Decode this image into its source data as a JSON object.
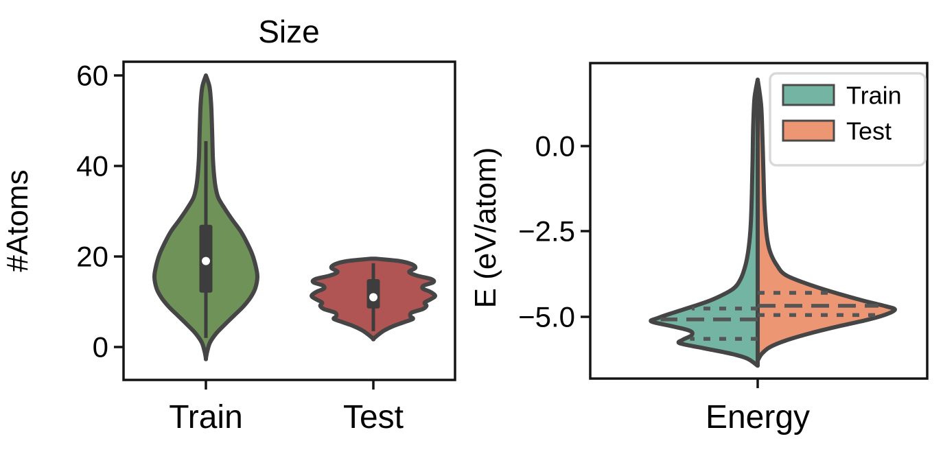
{
  "chart_data": [
    {
      "type": "violin",
      "title": "Size",
      "ylabel": "#Atoms",
      "xlabel": "",
      "categories": [
        "Train",
        "Test"
      ],
      "yticks": [
        60,
        40,
        20,
        0
      ],
      "ytick_labels": [
        "60",
        "40",
        "20",
        "0"
      ],
      "ylim": [
        -8,
        64
      ],
      "grid": false,
      "inner": "box",
      "series": [
        {
          "name": "Train",
          "color": "#6e9257",
          "median": 19,
          "q1": 12,
          "q3": 27,
          "whisker_low": 2,
          "whisker_high": 45.5,
          "kde_range": [
            -2.5,
            60
          ],
          "kde": [
            [
              60,
              0
            ],
            [
              57.5,
              0.07
            ],
            [
              54,
              0.1
            ],
            [
              50,
              0.115
            ],
            [
              46,
              0.125
            ],
            [
              42,
              0.135
            ],
            [
              38.5,
              0.155
            ],
            [
              35.5,
              0.185
            ],
            [
              33,
              0.24
            ],
            [
              30.5,
              0.37
            ],
            [
              28,
              0.52
            ],
            [
              25.5,
              0.68
            ],
            [
              23,
              0.8
            ],
            [
              20.5,
              0.9
            ],
            [
              18,
              0.965
            ],
            [
              15.5,
              1.0
            ],
            [
              13,
              0.96
            ],
            [
              11,
              0.87
            ],
            [
              9,
              0.73
            ],
            [
              7,
              0.55
            ],
            [
              5,
              0.37
            ],
            [
              3,
              0.2
            ],
            [
              1,
              0.08
            ],
            [
              -1,
              0.025
            ],
            [
              -2.5,
              0
            ]
          ]
        },
        {
          "name": "Test",
          "color": "#b05454",
          "median": 11,
          "q1": 8.5,
          "q3": 15,
          "whisker_low": 3.5,
          "whisker_high": 18.5,
          "kde_range": [
            1.8,
            19.5
          ],
          "kde": [
            [
              19.5,
              0.05
            ],
            [
              19,
              0.42
            ],
            [
              18.3,
              0.62
            ],
            [
              17.5,
              0.68
            ],
            [
              16.6,
              0.58
            ],
            [
              15.8,
              0.7
            ],
            [
              15,
              0.94
            ],
            [
              14.3,
              0.97
            ],
            [
              13.6,
              0.82
            ],
            [
              12.9,
              0.8
            ],
            [
              12.2,
              0.92
            ],
            [
              11.3,
              1.0
            ],
            [
              10.5,
              0.92
            ],
            [
              9.8,
              0.83
            ],
            [
              9.1,
              0.86
            ],
            [
              8.4,
              0.8
            ],
            [
              7.6,
              0.62
            ],
            [
              6.8,
              0.6
            ],
            [
              6.2,
              0.64
            ],
            [
              5.5,
              0.5
            ],
            [
              4.6,
              0.32
            ],
            [
              3.6,
              0.17
            ],
            [
              2.5,
              0.06
            ],
            [
              1.8,
              0
            ]
          ]
        }
      ]
    },
    {
      "type": "violin-split",
      "title": "",
      "ylabel": "E (eV/atom)",
      "xlabel": "",
      "categories": [
        "Energy"
      ],
      "yticks": [
        0.0,
        -2.5,
        -5.0
      ],
      "ytick_labels": [
        "0.0",
        "−2.5",
        "−5.0"
      ],
      "ylim": [
        -7,
        2.5
      ],
      "grid": false,
      "inner": "quartiles-dashed",
      "legend": {
        "position": "upper right",
        "items": [
          "Train",
          "Test"
        ]
      },
      "series": [
        {
          "name": "Train",
          "side": "left",
          "color": "#73b5a2",
          "median": -5.09,
          "q1": -5.66,
          "q3": -4.77,
          "kde_range": [
            -6.45,
            1.95
          ],
          "kde": [
            [
              1.95,
              0
            ],
            [
              1.4,
              0.03
            ],
            [
              0.6,
              0.042
            ],
            [
              -0.4,
              0.048
            ],
            [
              -1.4,
              0.055
            ],
            [
              -2.3,
              0.065
            ],
            [
              -3.0,
              0.085
            ],
            [
              -3.5,
              0.115
            ],
            [
              -3.9,
              0.16
            ],
            [
              -4.2,
              0.235
            ],
            [
              -4.5,
              0.42
            ],
            [
              -4.7,
              0.6
            ],
            [
              -4.9,
              0.8
            ],
            [
              -5.05,
              0.94
            ],
            [
              -5.15,
              1.0
            ],
            [
              -5.28,
              0.82
            ],
            [
              -5.42,
              0.64
            ],
            [
              -5.55,
              0.62
            ],
            [
              -5.68,
              0.7
            ],
            [
              -5.78,
              0.74
            ],
            [
              -5.88,
              0.6
            ],
            [
              -6.0,
              0.4
            ],
            [
              -6.12,
              0.22
            ],
            [
              -6.25,
              0.09
            ],
            [
              -6.45,
              0
            ]
          ]
        },
        {
          "name": "Test",
          "side": "right",
          "color": "#ec9673",
          "median": -4.69,
          "q1": -4.96,
          "q3": -4.31,
          "kde_range": [
            -6.3,
            1.95
          ],
          "kde": [
            [
              1.95,
              0
            ],
            [
              1.2,
              0.025
            ],
            [
              0.2,
              0.035
            ],
            [
              -0.8,
              0.042
            ],
            [
              -1.8,
              0.05
            ],
            [
              -2.6,
              0.065
            ],
            [
              -3.1,
              0.09
            ],
            [
              -3.5,
              0.14
            ],
            [
              -3.8,
              0.21
            ],
            [
              -4.1,
              0.4
            ],
            [
              -4.35,
              0.6
            ],
            [
              -4.55,
              0.78
            ],
            [
              -4.7,
              0.93
            ],
            [
              -4.8,
              1.0
            ],
            [
              -4.95,
              0.93
            ],
            [
              -5.1,
              0.8
            ],
            [
              -5.3,
              0.58
            ],
            [
              -5.5,
              0.38
            ],
            [
              -5.7,
              0.21
            ],
            [
              -5.9,
              0.09
            ],
            [
              -6.1,
              0.03
            ],
            [
              -6.3,
              0
            ]
          ]
        }
      ]
    }
  ]
}
